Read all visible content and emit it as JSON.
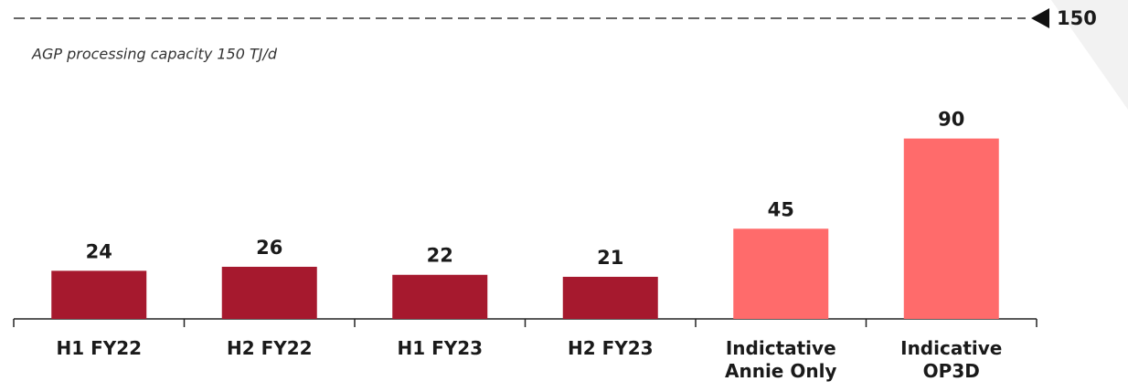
{
  "chart_data": {
    "type": "bar",
    "categories": [
      "H1 FY22",
      "H2 FY22",
      "H1 FY23",
      "H2 FY23",
      "Indictative Annie Only",
      "Indicative OP3D"
    ],
    "values": [
      24,
      26,
      22,
      21,
      45,
      90
    ],
    "colors": [
      "#a6192e",
      "#a6192e",
      "#a6192e",
      "#a6192e",
      "#ff6b6b",
      "#ff6b6b"
    ],
    "ylim": [
      0,
      150
    ],
    "reference_line": {
      "value": 150,
      "label": "150",
      "text": "AGP processing capacity 150 TJ/d"
    }
  }
}
